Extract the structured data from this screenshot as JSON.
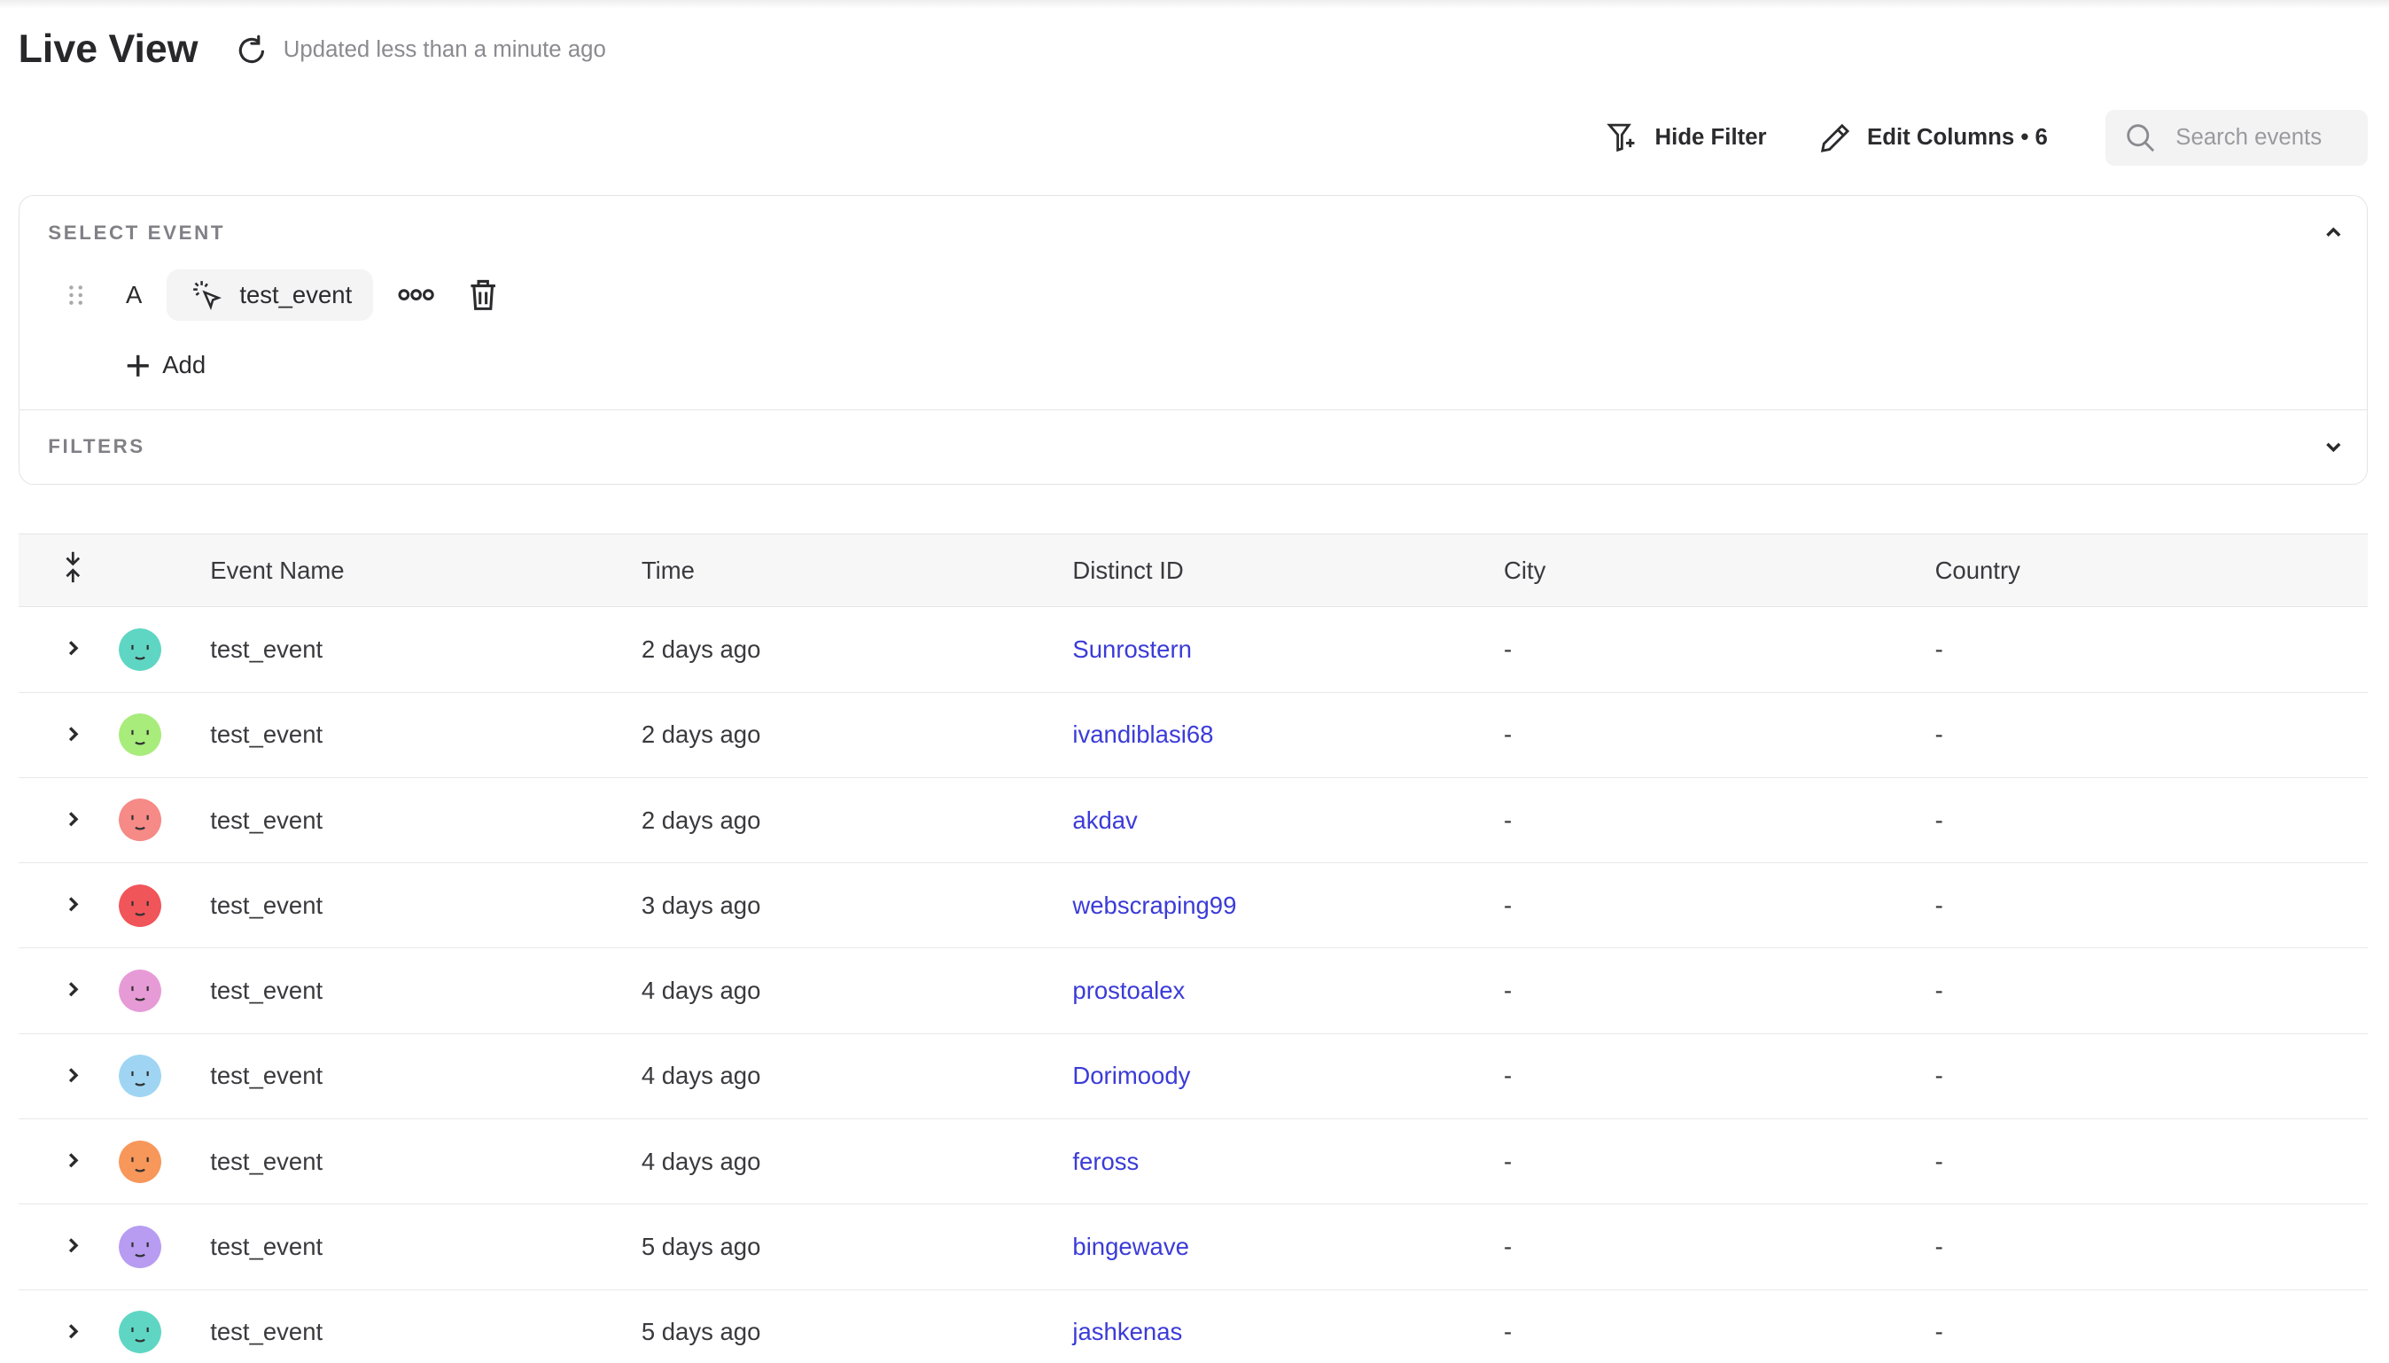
{
  "header": {
    "title": "Live View",
    "updated": "Updated less than a minute ago"
  },
  "toolbar": {
    "hide_filter": "Hide Filter",
    "edit_columns": "Edit Columns • 6",
    "search_placeholder": "Search events"
  },
  "select_event": {
    "label": "SELECT EVENT",
    "event_letter": "A",
    "event_name": "test_event",
    "add_label": "Add"
  },
  "filters": {
    "label": "FILTERS"
  },
  "table": {
    "columns": [
      "Event Name",
      "Time",
      "Distinct ID",
      "City",
      "Country"
    ],
    "rows": [
      {
        "event": "test_event",
        "time": "2 days ago",
        "distinct_id": "Sunrostern",
        "city": "-",
        "country": "-",
        "avatar_color": "#5fd6c4"
      },
      {
        "event": "test_event",
        "time": "2 days ago",
        "distinct_id": "ivandiblasi68",
        "city": "-",
        "country": "-",
        "avatar_color": "#a8ec7c"
      },
      {
        "event": "test_event",
        "time": "2 days ago",
        "distinct_id": "akdav",
        "city": "-",
        "country": "-",
        "avatar_color": "#f58a86"
      },
      {
        "event": "test_event",
        "time": "3 days ago",
        "distinct_id": "webscraping99",
        "city": "-",
        "country": "-",
        "avatar_color": "#f0555a"
      },
      {
        "event": "test_event",
        "time": "4 days ago",
        "distinct_id": "prostoalex",
        "city": "-",
        "country": "-",
        "avatar_color": "#e79bd6"
      },
      {
        "event": "test_event",
        "time": "4 days ago",
        "distinct_id": "Dorimoody",
        "city": "-",
        "country": "-",
        "avatar_color": "#9fd5f3"
      },
      {
        "event": "test_event",
        "time": "4 days ago",
        "distinct_id": "feross",
        "city": "-",
        "country": "-",
        "avatar_color": "#f7975a"
      },
      {
        "event": "test_event",
        "time": "5 days ago",
        "distinct_id": "bingewave",
        "city": "-",
        "country": "-",
        "avatar_color": "#b79cf2"
      },
      {
        "event": "test_event",
        "time": "5 days ago",
        "distinct_id": "jashkenas",
        "city": "-",
        "country": "-",
        "avatar_color": "#5fd6c4"
      }
    ]
  }
}
